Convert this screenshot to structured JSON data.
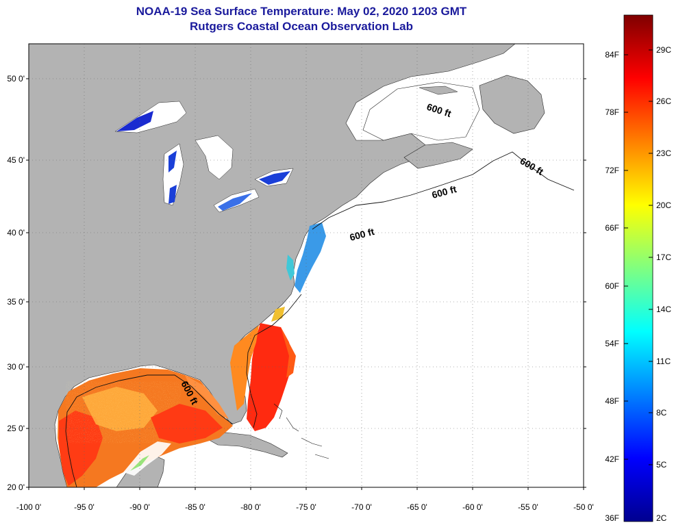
{
  "header": {
    "title": "NOAA-19 Sea Surface Temperature:  May 02, 2020 1203 GMT",
    "subtitle": "Rutgers Coastal Ocean Observation Lab"
  },
  "map": {
    "lat_labels": [
      "50 0'",
      "45 0'",
      "40 0'",
      "35 0'",
      "30 0'",
      "25 0'",
      "20 0'"
    ],
    "lon_labels": [
      "-100 0'",
      "-95 0'",
      "-90 0'",
      "-85 0'",
      "-80 0'",
      "-75 0'",
      "-70 0'",
      "-65 0'",
      "-60 0'",
      "-55 0'",
      "-50 0'"
    ],
    "contour_labels": [
      "600 ft",
      "600 ft",
      "600 ft",
      "600 ft",
      "600 ft"
    ],
    "colors": {
      "land": "#b3b3b3",
      "ocean_no_data": "#ffffff",
      "grid": "#666666"
    }
  },
  "colorbar": {
    "fahrenheit": [
      "84F",
      "78F",
      "72F",
      "66F",
      "60F",
      "54F",
      "48F",
      "42F",
      "36F"
    ],
    "celsius": [
      "29C",
      "26C",
      "23C",
      "20C",
      "17C",
      "14C",
      "11C",
      "8C",
      "5C",
      "2C"
    ],
    "stops": [
      "#7f0000",
      "#ff0000",
      "#ff8000",
      "#ffff00",
      "#80ff80",
      "#00ffff",
      "#0080ff",
      "#0000ff",
      "#00008f"
    ]
  }
}
